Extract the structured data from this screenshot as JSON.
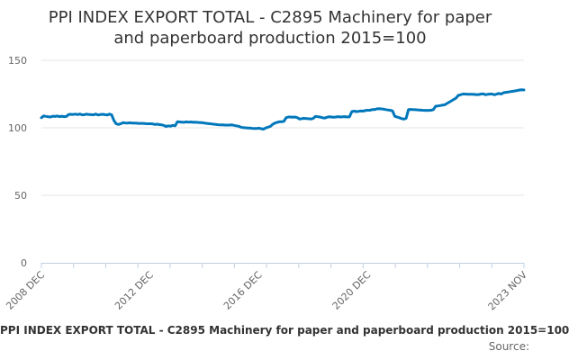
{
  "chart_data": {
    "type": "line",
    "title_line1": "PPI INDEX EXPORT TOTAL - C2895 Machinery for paper",
    "title_line2": "and paperboard production 2015=100",
    "xlabel": "",
    "ylabel": "",
    "ylim": [
      0,
      150
    ],
    "yticks": [
      "0",
      "50",
      "100",
      "150"
    ],
    "xticks": [
      "2008 DEC",
      "2012 DEC",
      "2016 DEC",
      "2020 DEC",
      "2023 NOV"
    ],
    "grid": "horizontal",
    "legend": "bottom",
    "line_color": "#0077bb",
    "series": [
      {
        "name": "PPI INDEX EXPORT TOTAL - C2895 Machinery for paper and paperboard production 2015=100",
        "x_start": "2008 DEC",
        "x_end": "2023 NOV",
        "values": [
          107.5,
          108.8,
          108.5,
          108.2,
          108.0,
          108.6,
          108.4,
          108.7,
          108.3,
          108.6,
          108.3,
          108.4,
          109.8,
          110.0,
          109.9,
          110.1,
          109.8,
          110.2,
          109.6,
          109.7,
          110.1,
          109.8,
          109.7,
          109.6,
          110.2,
          109.5,
          109.8,
          110.0,
          109.7,
          109.5,
          110.1,
          109.6,
          105.5,
          103.0,
          102.5,
          103.0,
          103.8,
          103.6,
          103.5,
          103.7,
          103.5,
          103.5,
          103.4,
          103.3,
          103.3,
          103.3,
          103.1,
          103.0,
          103.0,
          102.9,
          102.5,
          102.7,
          102.4,
          102.2,
          101.8,
          101.0,
          101.5,
          101.2,
          101.8,
          101.5,
          104.5,
          104.3,
          104.2,
          104.1,
          104.4,
          104.2,
          104.3,
          104.1,
          104.2,
          104.0,
          103.9,
          103.8,
          103.5,
          103.3,
          103.1,
          102.9,
          102.7,
          102.5,
          102.3,
          102.2,
          102.1,
          102.0,
          102.0,
          102.0,
          102.2,
          101.8,
          101.5,
          101.2,
          100.5,
          100.1,
          100.0,
          99.8,
          99.8,
          99.6,
          99.5,
          99.5,
          99.7,
          99.3,
          99.0,
          99.9,
          100.5,
          101.0,
          102.5,
          103.5,
          104.0,
          104.5,
          104.5,
          104.8,
          107.5,
          108.0,
          108.0,
          107.8,
          108.0,
          107.5,
          106.5,
          106.8,
          107.0,
          106.8,
          106.7,
          106.5,
          107.0,
          108.5,
          108.2,
          108.0,
          107.5,
          107.2,
          107.8,
          108.2,
          108.0,
          107.8,
          108.0,
          108.3,
          108.0,
          108.2,
          108.3,
          108.0,
          108.2,
          112.0,
          112.3,
          112.0,
          112.2,
          112.5,
          112.3,
          112.8,
          113.0,
          113.0,
          113.5,
          113.5,
          114.0,
          114.2,
          114.0,
          113.8,
          113.5,
          113.2,
          113.0,
          112.5,
          108.5,
          108.0,
          107.5,
          106.8,
          106.5,
          107.0,
          113.5,
          113.6,
          113.5,
          113.4,
          113.3,
          113.2,
          113.0,
          112.9,
          112.8,
          112.9,
          113.0,
          113.5,
          116.0,
          116.2,
          116.5,
          116.8,
          117.0,
          118.0,
          119.0,
          120.0,
          121.0,
          122.0,
          124.0,
          124.5,
          125.0,
          125.0,
          124.8,
          124.8,
          124.8,
          124.7,
          124.6,
          124.6,
          125.0,
          125.2,
          124.5,
          124.8,
          125.0,
          125.0,
          124.5,
          125.0,
          125.5,
          125.0,
          126.0,
          126.3,
          126.5,
          126.8,
          127.0,
          127.3,
          127.6,
          128.0,
          128.2,
          128.0
        ]
      }
    ]
  },
  "source_label": "Source:"
}
